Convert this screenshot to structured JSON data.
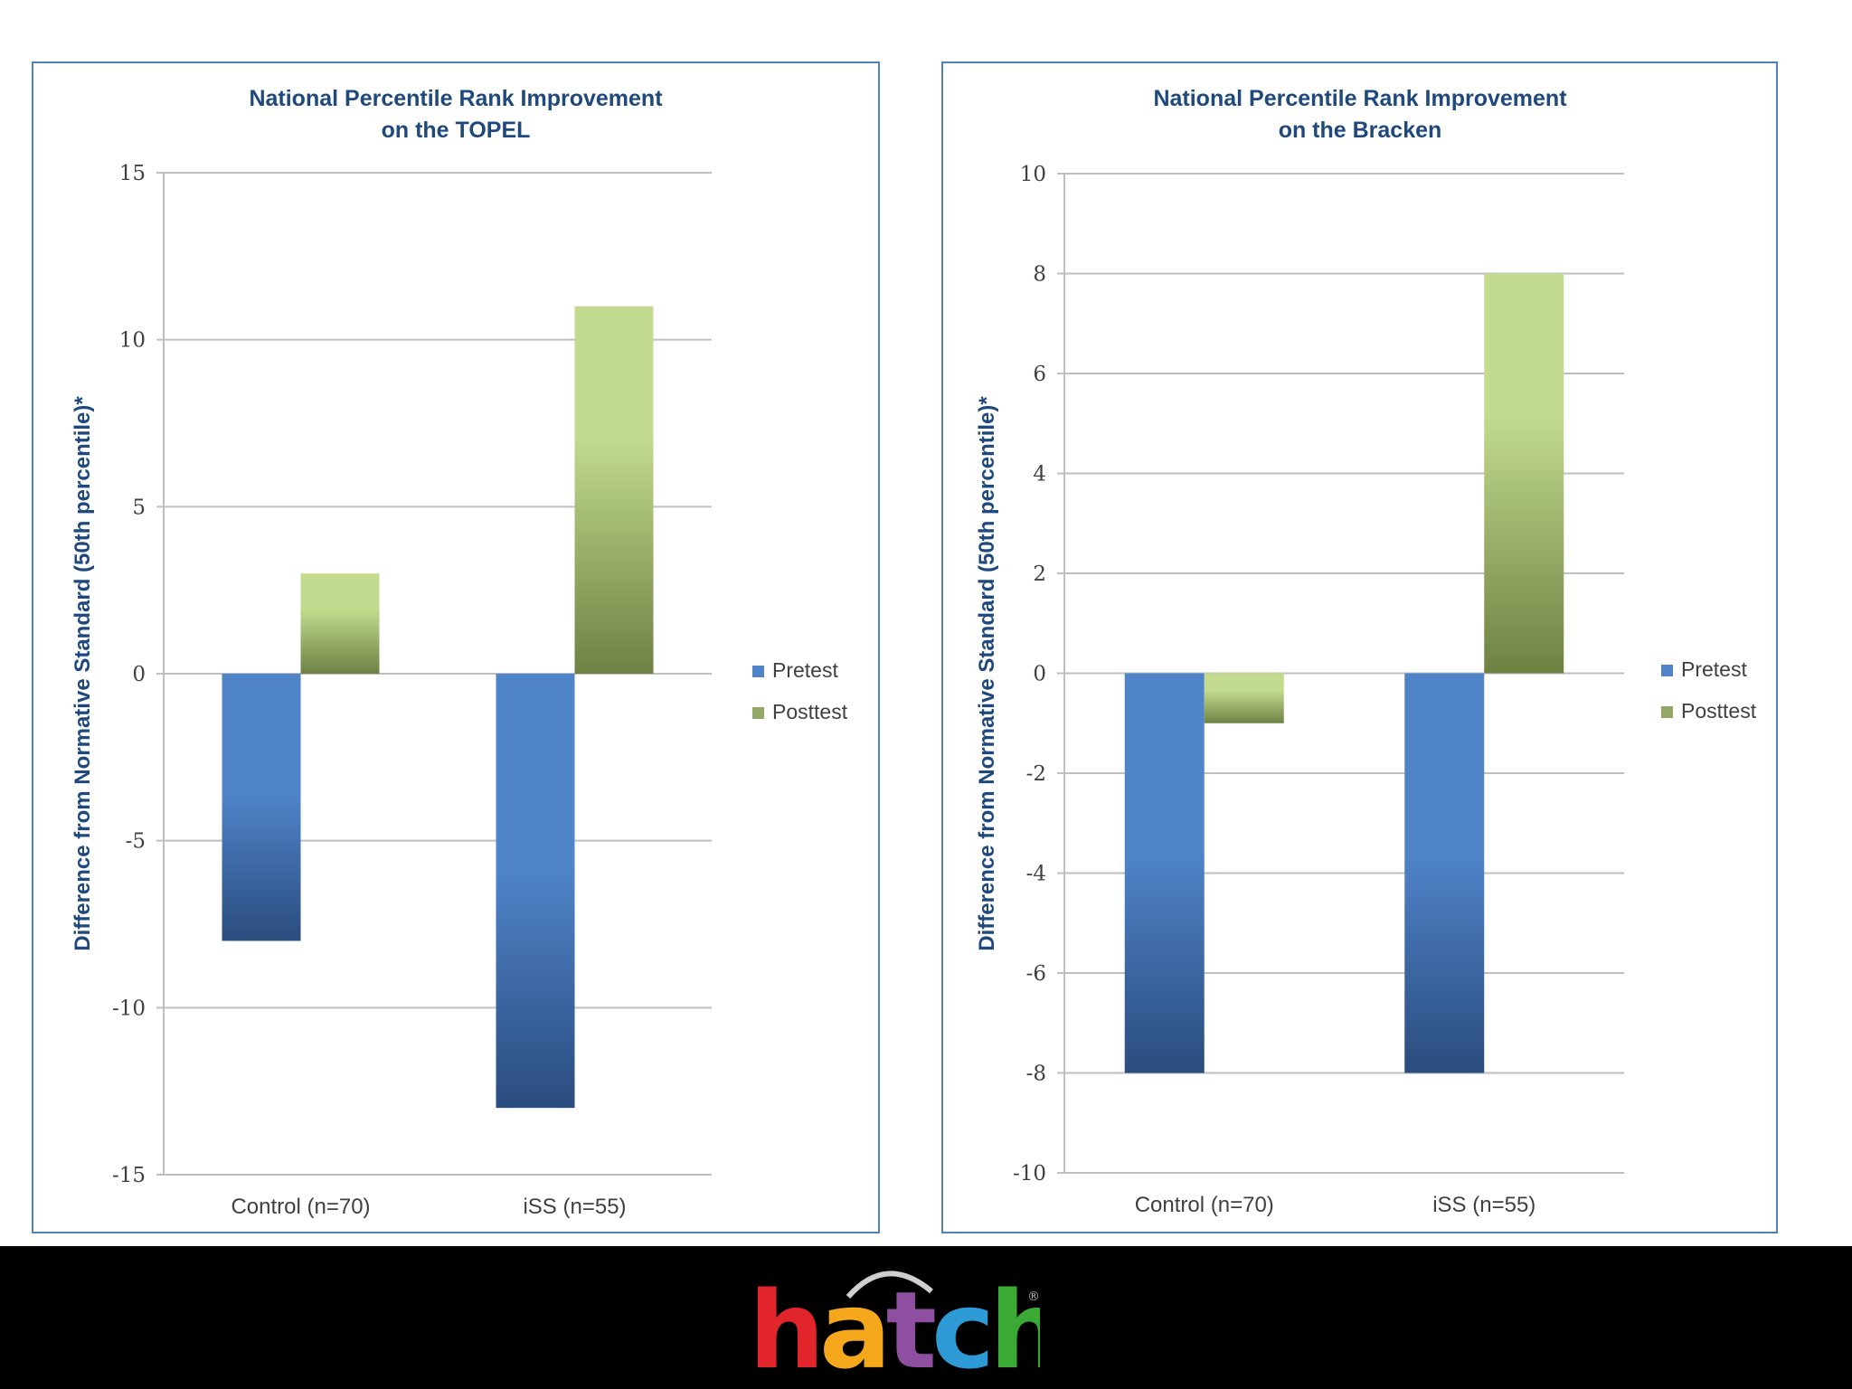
{
  "chart_data": [
    {
      "type": "bar",
      "title_lines": [
        "National Percentile Rank Improvement",
        "on the TOPEL"
      ],
      "ylabel": "Difference from Normative Standard (50th percentile)*",
      "categories": [
        "Control (n=70)",
        "iSS (n=55)"
      ],
      "series": [
        {
          "name": "Pretest",
          "values": [
            -8,
            -13
          ]
        },
        {
          "name": "Posttest",
          "values": [
            3,
            11
          ]
        }
      ],
      "ylim": [
        -15,
        15
      ],
      "yticks": [
        15,
        10,
        5,
        0,
        -5,
        -10,
        -15
      ],
      "grid": true,
      "legend": "right"
    },
    {
      "type": "bar",
      "title_lines": [
        "National Percentile Rank Improvement",
        "on the Bracken"
      ],
      "ylabel": "Difference from Normative Standard (50th percentile)*",
      "categories": [
        "Control (n=70)",
        "iSS (n=55)"
      ],
      "series": [
        {
          "name": "Pretest",
          "values": [
            -8,
            -8
          ]
        },
        {
          "name": "Posttest",
          "values": [
            -1,
            8
          ]
        }
      ],
      "ylim": [
        -10,
        10
      ],
      "yticks": [
        10,
        8,
        6,
        4,
        2,
        0,
        -2,
        -4,
        -6,
        -8,
        -10
      ],
      "grid": true,
      "legend": "right"
    }
  ],
  "colors": {
    "pretest_light": "#4f84c9",
    "pretest_dark": "#2a4c7e",
    "posttest_light": "#c3db8e",
    "posttest_dark": "#6e8143",
    "title": "#1f497d",
    "axis_text": "#404040",
    "grid": "#bfbfbf",
    "border": "#4f81bd"
  },
  "footer": {
    "logo_letters": [
      "h",
      "a",
      "t",
      "c",
      "h"
    ],
    "logo_colors": [
      "#e2242b",
      "#f6a81c",
      "#8e4fa1",
      "#2e9bd6",
      "#3aaa35"
    ],
    "registered_mark": "®"
  }
}
